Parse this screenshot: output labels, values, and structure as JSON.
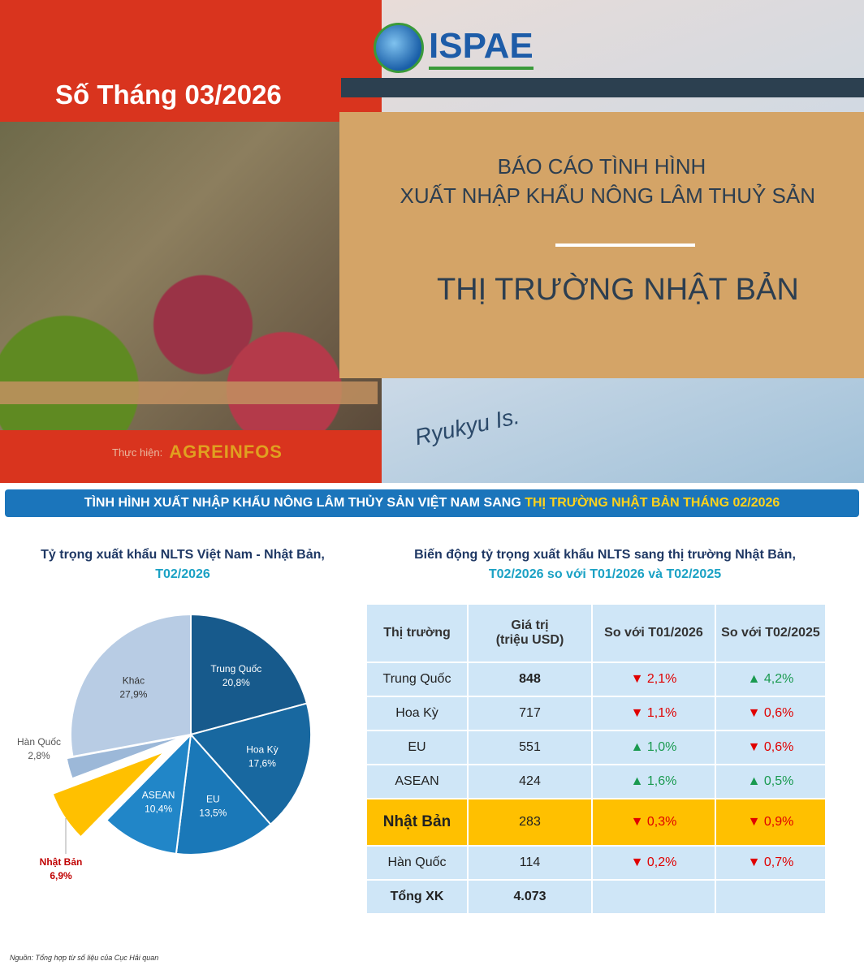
{
  "header": {
    "issue": "Số Tháng 03/2026",
    "logo": "ISPAE",
    "title_line1": "BÁO CÁO TÌNH HÌNH",
    "title_line2": "XUẤT NHẬP KHẨU NÔNG LÂM THUỶ SẢN",
    "market_title": "THỊ TRƯỜNG NHẬT BẢN",
    "credit_label": "Thực hiện:",
    "credit_logo": "AGREINFOS",
    "map_label": "Ryukyu Is."
  },
  "banner": {
    "text": "TÌNH HÌNH XUẤT NHẬP KHẨU NÔNG LÂM THỦY SẢN VIỆT NAM SANG ",
    "highlight": "THỊ TRƯỜNG NHẬT BẢN THÁNG 02/2026"
  },
  "pie_title": {
    "line1": "Tỷ trọng xuất khẩu NLTS Việt Nam - Nhật Bản,",
    "line2": "T02/2026"
  },
  "table_title": {
    "line1": "Biến động tỷ trọng xuất khẩu NLTS sang thị trường Nhật Bản,",
    "line2": "T02/2026 so với T01/2026 và T02/2025"
  },
  "chart_data": {
    "type": "pie",
    "start": "top",
    "direction": "clockwise",
    "slices": [
      {
        "label": "Trung Quốc",
        "value": 20.8,
        "text": "20,8%",
        "color": "#175a8c"
      },
      {
        "label": "Hoa Kỳ",
        "value": 17.6,
        "text": "17,6%",
        "color": "#1868a0"
      },
      {
        "label": "EU",
        "value": 13.5,
        "text": "13,5%",
        "color": "#1a78b8"
      },
      {
        "label": "ASEAN",
        "value": 10.4,
        "text": "10,4%",
        "color": "#2186c8"
      },
      {
        "label": "Nhật Bản",
        "value": 6.9,
        "text": "6,9%",
        "color": "#ffc000",
        "exploded": true
      },
      {
        "label": "Hàn Quốc",
        "value": 2.8,
        "text": "2,8%",
        "color": "#9cb8d8",
        "exploded": true
      },
      {
        "label": "Khác",
        "value": 27.9,
        "text": "27,9%",
        "color": "#b8cce4"
      }
    ]
  },
  "table": {
    "headers": [
      "Thị trường",
      "Giá trị\n(triệu USD)",
      "So với T01/2026",
      "So với T02/2025"
    ],
    "rows": [
      {
        "market": "Trung Quốc",
        "value": "848",
        "m": "▼ 2,1%",
        "m_dir": "down",
        "y": "▲ 4,2%",
        "y_dir": "up",
        "bold": true
      },
      {
        "market": "Hoa Kỳ",
        "value": "717",
        "m": "▼ 1,1%",
        "m_dir": "down",
        "y": "▼ 0,6%",
        "y_dir": "down"
      },
      {
        "market": "EU",
        "value": "551",
        "m": "▲ 1,0%",
        "m_dir": "up",
        "y": "▼ 0,6%",
        "y_dir": "down"
      },
      {
        "market": "ASEAN",
        "value": "424",
        "m": "▲ 1,6%",
        "m_dir": "up",
        "y": "▲ 0,5%",
        "y_dir": "up"
      },
      {
        "market": "Nhật Bản",
        "value": "283",
        "m": "▼ 0,3%",
        "m_dir": "down",
        "y": "▼ 0,9%",
        "y_dir": "down",
        "highlight": true
      },
      {
        "market": "Hàn Quốc",
        "value": "114",
        "m": "▼ 0,2%",
        "m_dir": "down",
        "y": "▼ 0,7%",
        "y_dir": "down"
      }
    ],
    "total_label": "Tổng XK",
    "total_value": "4.073"
  },
  "source": "Nguồn: Tổng hợp từ số liệu của Cục Hải quan"
}
